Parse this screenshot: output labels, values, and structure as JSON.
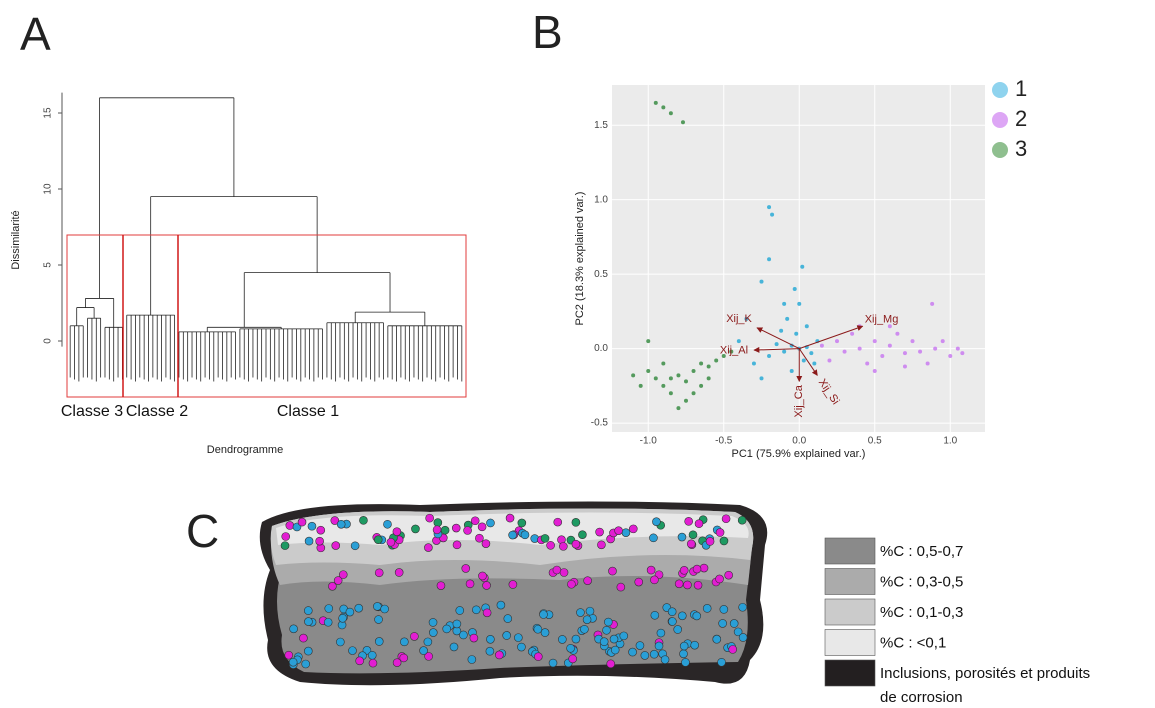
{
  "panels": {
    "a": "A",
    "b": "B",
    "c": "C"
  },
  "chart_data": [
    {
      "type": "dendrogram",
      "y_label": "Dissimilarité",
      "x_label": "Dendrogramme",
      "ylim": [
        -3,
        17
      ],
      "yticks": [
        0,
        5,
        10,
        15
      ],
      "classes": [
        "Classe 3",
        "Classe 2",
        "Classe 1"
      ],
      "tree": {
        "height": 16,
        "children": [
          {
            "height": 2.8,
            "children": [
              {
                "height": 2.2,
                "children": [
                  {
                    "height": 1.0,
                    "leaves": 4
                  },
                  {
                    "height": 1.5,
                    "leaves": 4
                  }
                ]
              },
              {
                "height": 0.9,
                "leaves": 5
              }
            ]
          },
          {
            "height": 9.5,
            "children": [
              {
                "height": 1.7,
                "leaves": 12
              },
              {
                "height": 4.5,
                "children": [
                  {
                    "height": 0.9,
                    "children": [
                      {
                        "height": 0.6,
                        "leaves": 14
                      },
                      {
                        "height": 0.8,
                        "leaves": 20
                      }
                    ]
                  },
                  {
                    "height": 1.9,
                    "children": [
                      {
                        "height": 1.2,
                        "leaves": 14
                      },
                      {
                        "height": 1.0,
                        "leaves": 18
                      }
                    ]
                  }
                ]
              }
            ]
          }
        ]
      }
    },
    {
      "type": "scatter",
      "x_label": "PC1 (75.9% explained var.)",
      "y_label": "PC2 (18.3% explained var.)",
      "xlim": [
        -1.24,
        1.23
      ],
      "ylim": [
        -0.56,
        1.77
      ],
      "xticks": [
        {
          "value": -1,
          "label": "-1.0"
        },
        -0.5,
        {
          "value": 0,
          "label": "0.0"
        },
        0.5,
        {
          "value": 1,
          "label": "1.0"
        }
      ],
      "yticks": [
        -0.5,
        {
          "value": 0,
          "label": "0.0"
        },
        0.5,
        {
          "value": 1,
          "label": "1.0"
        },
        1.5
      ],
      "grid": true,
      "series": [
        {
          "name": "1",
          "color": "#2aaad6",
          "legend_color": "#8fd3ee",
          "x": [
            0,
            -0.05,
            0.05,
            -0.1,
            0.08,
            -0.15,
            0.12,
            -0.2,
            -0.02,
            0.03,
            -0.08,
            -0.03,
            -0.2,
            -0.2,
            -0.25,
            -0.35,
            -0.3,
            -0.25,
            0.05,
            -0.12,
            0.1,
            -0.05,
            -0.4,
            0.02,
            -0.1,
            0,
            -0.18
          ],
          "y": [
            0,
            0.02,
            0.01,
            -0.02,
            -0.03,
            0.03,
            0.05,
            -0.05,
            0.1,
            -0.08,
            0.2,
            0.4,
            0.6,
            0.95,
            0.45,
            0.2,
            -0.1,
            -0.2,
            0.15,
            0.12,
            -0.1,
            -0.15,
            0.05,
            0.55,
            0.3,
            0.3,
            0.9
          ]
        },
        {
          "name": "2",
          "color": "#c97bf0",
          "legend_color": "#dda6f5",
          "x": [
            0.15,
            0.25,
            0.3,
            0.4,
            0.5,
            0.55,
            0.6,
            0.7,
            0.75,
            0.8,
            0.9,
            1.0,
            1.05,
            1.08,
            0.45,
            0.35,
            0.65,
            0.5,
            0.85,
            0.2,
            0.95,
            0.6,
            0.88,
            0.4,
            0.7
          ],
          "y": [
            0.02,
            0.05,
            -0.02,
            0,
            0.05,
            -0.05,
            0.02,
            -0.03,
            0.05,
            -0.02,
            0,
            -0.05,
            0,
            -0.03,
            -0.1,
            0.1,
            0.1,
            -0.15,
            -0.1,
            -0.08,
            0.05,
            0.15,
            0.3,
            0.15,
            -0.12
          ]
        },
        {
          "name": "3",
          "color": "#3a8c44",
          "legend_color": "#8fbf8f",
          "x": [
            -1.0,
            -0.95,
            -0.9,
            -0.85,
            -0.8,
            -0.75,
            -0.7,
            -0.65,
            -0.6,
            -0.55,
            -0.5,
            -0.45,
            -0.85,
            -0.75,
            -0.7,
            -0.65,
            -0.9,
            -1.1,
            -1.05,
            -0.8,
            -0.6,
            -1.0,
            -0.95,
            -0.9,
            -0.85,
            -0.77
          ],
          "y": [
            -0.15,
            -0.2,
            -0.25,
            -0.2,
            -0.18,
            -0.22,
            -0.15,
            -0.1,
            -0.12,
            -0.08,
            -0.05,
            -0.02,
            -0.3,
            -0.35,
            -0.3,
            -0.25,
            -0.1,
            -0.18,
            -0.25,
            -0.4,
            -0.2,
            0.05,
            1.65,
            1.62,
            1.58,
            1.52
          ]
        }
      ],
      "arrow_color": "#8b1a1a",
      "arrows": [
        {
          "name": "Xij_K",
          "x": -0.28,
          "y": 0.14
        },
        {
          "name": "Xij_Mg",
          "x": 0.42,
          "y": 0.15
        },
        {
          "name": "Xij_Al",
          "x": -0.3,
          "y": -0.01
        },
        {
          "name": "Xij_Ca",
          "x": 0,
          "y": -0.22
        },
        {
          "name": "Xij_Si",
          "x": 0.12,
          "y": -0.18
        }
      ]
    }
  ],
  "map_legend": [
    {
      "label": "%C : 0,5-0,7",
      "color": "#8a8a8a"
    },
    {
      "label": "%C : 0,3-0,5",
      "color": "#ababab"
    },
    {
      "label": "%C : 0,1-0,3",
      "color": "#cbcbcb"
    },
    {
      "label": "%C : <0,1",
      "color": "#e8e8e8"
    },
    {
      "label_lines": [
        "Inclusions, porosités et produits",
        "de corrosion"
      ],
      "color": "#231f20"
    }
  ]
}
